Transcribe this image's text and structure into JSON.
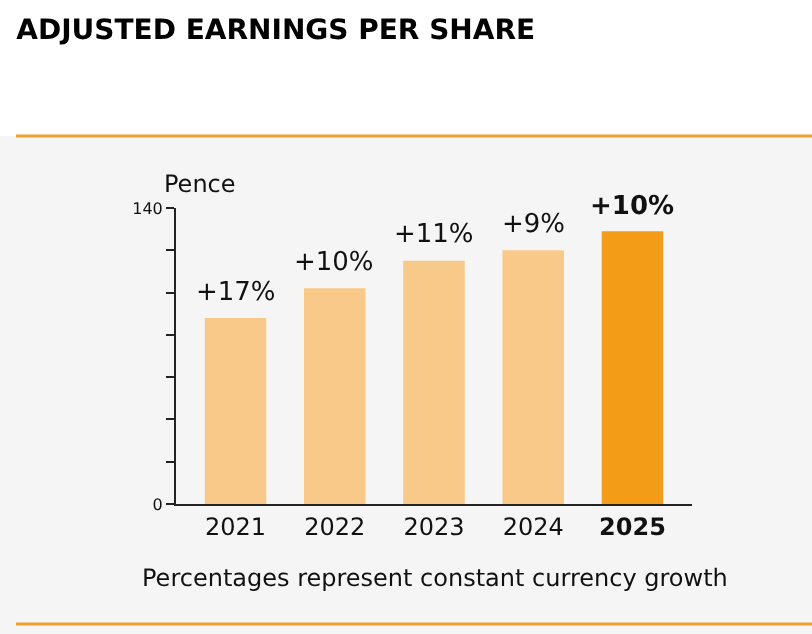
{
  "chart_data": {
    "type": "bar",
    "title": "ADJUSTED EARNINGS PER SHARE",
    "ylabel": "Pence",
    "categories": [
      "2021",
      "2022",
      "2023",
      "2024",
      "2025"
    ],
    "values": [
      88,
      102,
      115,
      120,
      129
    ],
    "colors": [
      "#f9c98a",
      "#f9c98a",
      "#f9c98a",
      "#f9c98a",
      "#f39c18"
    ],
    "ylim": [
      0,
      140
    ],
    "yticks": [
      0,
      {
        "value": 20,
        "label": null
      },
      {
        "value": 40,
        "label": null
      },
      {
        "value": 60,
        "label": null
      },
      {
        "value": 80,
        "label": null
      },
      {
        "value": 100,
        "label": null
      },
      {
        "value": 120,
        "label": null
      },
      140
    ],
    "grid": false,
    "legend": false,
    "annotations": [
      {
        "text": "+17%",
        "x": "2021",
        "y": 88
      },
      {
        "text": "+10%",
        "x": "2022",
        "y": 102
      },
      {
        "text": "+11%",
        "x": "2023",
        "y": 115
      },
      {
        "text": "+9%",
        "x": "2024",
        "y": 120
      },
      {
        "text": "+10%",
        "x": "2025",
        "y": 129
      },
      "Percentages represent constant currency growth"
    ]
  }
}
